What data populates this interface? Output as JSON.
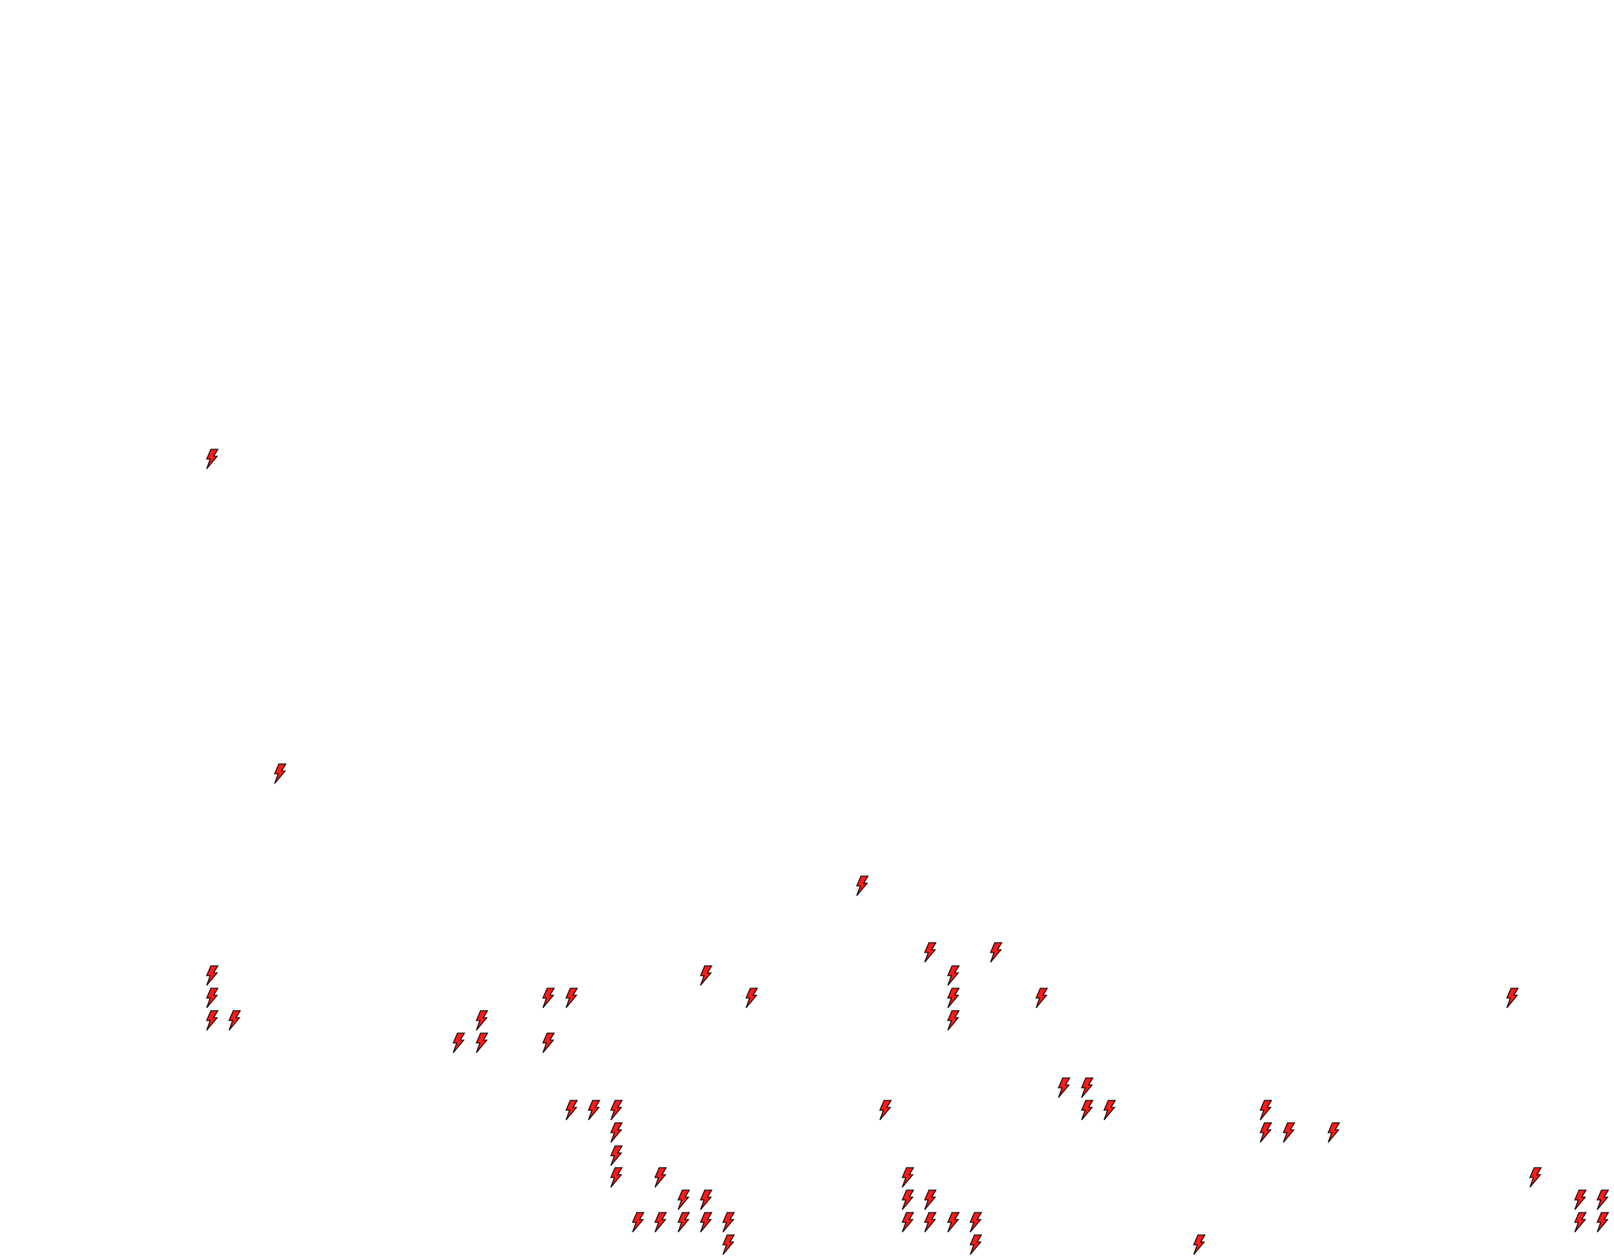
{
  "map": {
    "marker_icon": "lightning-bolt-icon",
    "marker_fill": "#ff1a1a",
    "marker_stroke": "#000000",
    "background": "#ffffff"
  }
}
